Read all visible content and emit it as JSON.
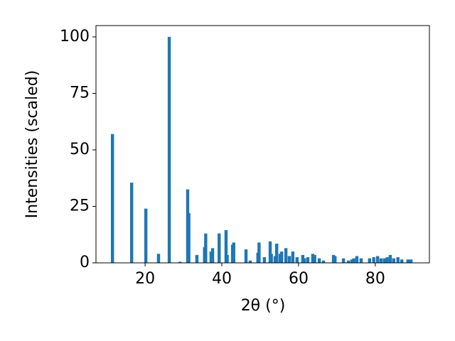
{
  "chart_data": {
    "type": "bar",
    "x": [
      11.5,
      16.5,
      20.2,
      23.5,
      26.3,
      29.1,
      31.1,
      31.4,
      33.5,
      35.5,
      35.8,
      37.2,
      37.6,
      39.3,
      41.1,
      41.4,
      42.8,
      43.1,
      46.3,
      47.4,
      49.4,
      49.7,
      51.1,
      52.6,
      52.9,
      53.9,
      54.3,
      55.2,
      55.6,
      56.7,
      57.6,
      58.5,
      59.6,
      61.1,
      61.5,
      62.4,
      63.7,
      64.2,
      65.4,
      66.5,
      69.1,
      69.5,
      71.7,
      73.0,
      73.9,
      74.4,
      75.2,
      76.3,
      78.5,
      79.6,
      80.6,
      81.5,
      82.4,
      83.1,
      83.9,
      84.8,
      85.9,
      86.9,
      88.5,
      89.3
    ],
    "values": [
      57,
      35.5,
      24,
      4,
      100,
      0.5,
      32.5,
      22,
      3.5,
      7,
      13,
      5,
      6.5,
      13,
      14.5,
      3.5,
      8,
      9,
      6,
      1,
      4.5,
      9,
      2.5,
      9.5,
      4,
      3,
      8.5,
      4,
      5,
      6.5,
      3,
      5,
      2.5,
      3.5,
      2,
      2.5,
      4,
      3.5,
      2,
      1,
      3.5,
      3,
      2,
      1,
      1.5,
      2,
      3,
      2,
      2,
      2.5,
      3,
      2,
      2,
      2.5,
      3.5,
      2,
      2.5,
      1.5,
      1.5,
      1.5
    ],
    "color": "#1f77b4",
    "xlabel": "2θ (°)",
    "ylabel": "Intensities (scaled)",
    "xlim": [
      7.2,
      94.1
    ],
    "ylim": [
      0,
      105
    ],
    "xticks": [
      20,
      40,
      60,
      80
    ],
    "yticks": [
      0,
      25,
      50,
      75,
      100
    ]
  }
}
